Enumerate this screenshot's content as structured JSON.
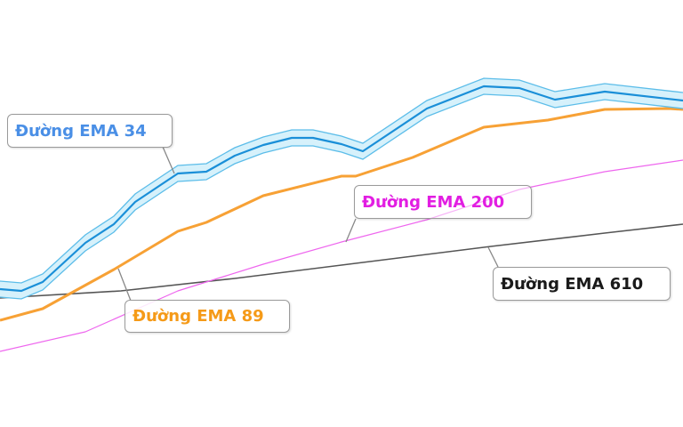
{
  "chart_data": {
    "type": "line",
    "title": "",
    "xlabel": "",
    "ylabel": "",
    "axes_visible": false,
    "grid": false,
    "xlim": [
      0,
      96
    ],
    "ylim": [
      0,
      420
    ],
    "series": [
      {
        "name": "Đường EMA 34",
        "color": "#1a8fd8",
        "band_color": "#d6f1fb",
        "band_edge_color": "#5cbde9",
        "band_halfwidth": 9,
        "x": [
          0,
          3,
          6,
          12,
          16,
          19,
          25,
          29,
          33,
          37,
          41,
          44,
          48,
          51,
          60,
          68,
          73,
          78,
          85,
          96
        ],
        "y": [
          95,
          93,
          103,
          147,
          168,
          193,
          225,
          227,
          245,
          257,
          265,
          265,
          258,
          250,
          298,
          323,
          321,
          308,
          317,
          307
        ]
      },
      {
        "name": "Đường EMA 89",
        "color": "#f7a135",
        "x": [
          0,
          6,
          16,
          25,
          29,
          37,
          48,
          50,
          58,
          68,
          77,
          85,
          94,
          96
        ],
        "y": [
          60,
          73,
          117,
          160,
          170,
          200,
          222,
          222,
          243,
          277,
          285,
          297,
          298,
          297
        ]
      },
      {
        "name": "Đường EMA 200",
        "color": "#ee66ee",
        "x": [
          0,
          12,
          25,
          37,
          48,
          60,
          73,
          85,
          96
        ],
        "y": [
          25,
          47,
          93,
          123,
          148,
          173,
          207,
          227,
          240
        ]
      },
      {
        "name": "Đường EMA 610",
        "color": "#555555",
        "x": [
          0,
          17,
          33,
          48,
          69,
          85,
          96
        ],
        "y": [
          85,
          93,
          107,
          122,
          143,
          158,
          168
        ]
      }
    ]
  },
  "labels": {
    "ema34": {
      "text": "Đường EMA 34",
      "color": "#4a8fe6"
    },
    "ema89": {
      "text": "Đường EMA 89",
      "color": "#f59a18"
    },
    "ema200": {
      "text": "Đường EMA 200",
      "color": "#e21ee2"
    },
    "ema610": {
      "text": "Đường EMA 610",
      "color": "#1a1a1a"
    }
  }
}
